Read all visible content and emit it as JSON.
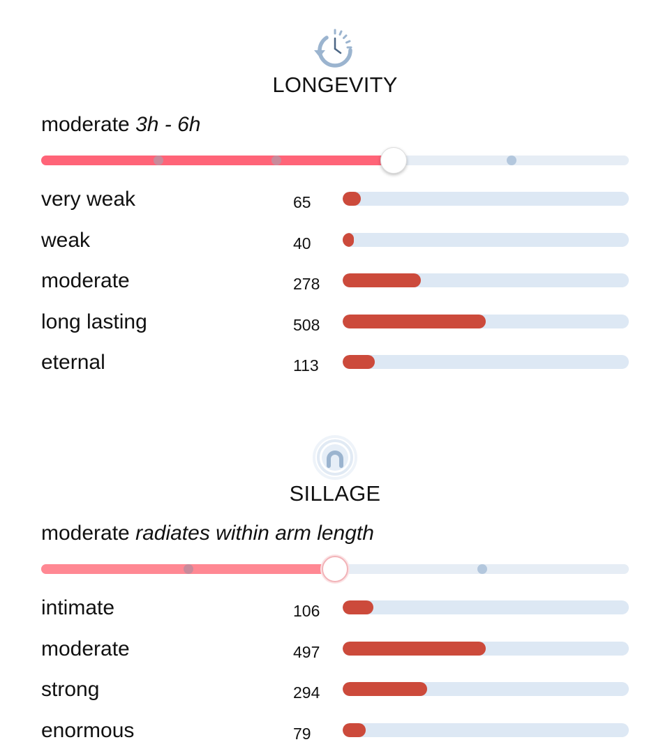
{
  "longevity": {
    "icon": "clock-rotate-icon",
    "title": "LONGEVITY",
    "summary_value": "moderate",
    "summary_desc": "3h - 6h",
    "slider": {
      "level": 0.6,
      "steps": 5,
      "fill_color": "#ff6478",
      "track_color": "#e6edf5"
    },
    "votes": [
      {
        "label": "very weak",
        "count": "65",
        "share": 0.128
      },
      {
        "label": "weak",
        "count": "40",
        "share": 0.079
      },
      {
        "label": "moderate",
        "count": "278",
        "share": 0.547
      },
      {
        "label": "long lasting",
        "count": "508",
        "share": 1.0
      },
      {
        "label": "eternal",
        "count": "113",
        "share": 0.222
      }
    ]
  },
  "sillage": {
    "icon": "sillage-person-icon",
    "title": "SILLAGE",
    "summary_value": "moderate",
    "summary_desc": "radiates within arm length",
    "slider": {
      "level": 0.5,
      "steps": 4,
      "fill_color": "#ff8893",
      "track_color": "#e6edf5"
    },
    "votes": [
      {
        "label": "intimate",
        "count": "106",
        "share": 0.213
      },
      {
        "label": "moderate",
        "count": "497",
        "share": 1.0
      },
      {
        "label": "strong",
        "count": "294",
        "share": 0.592
      },
      {
        "label": "enormous",
        "count": "79",
        "share": 0.159
      }
    ]
  },
  "colors": {
    "bar_fill": "#cc4a3b",
    "bar_track": "#dde8f4",
    "icon_blue": "#9bb4cf",
    "tick_on_fill": "#c98a9b",
    "tick_on_track": "#b3c7dd"
  }
}
